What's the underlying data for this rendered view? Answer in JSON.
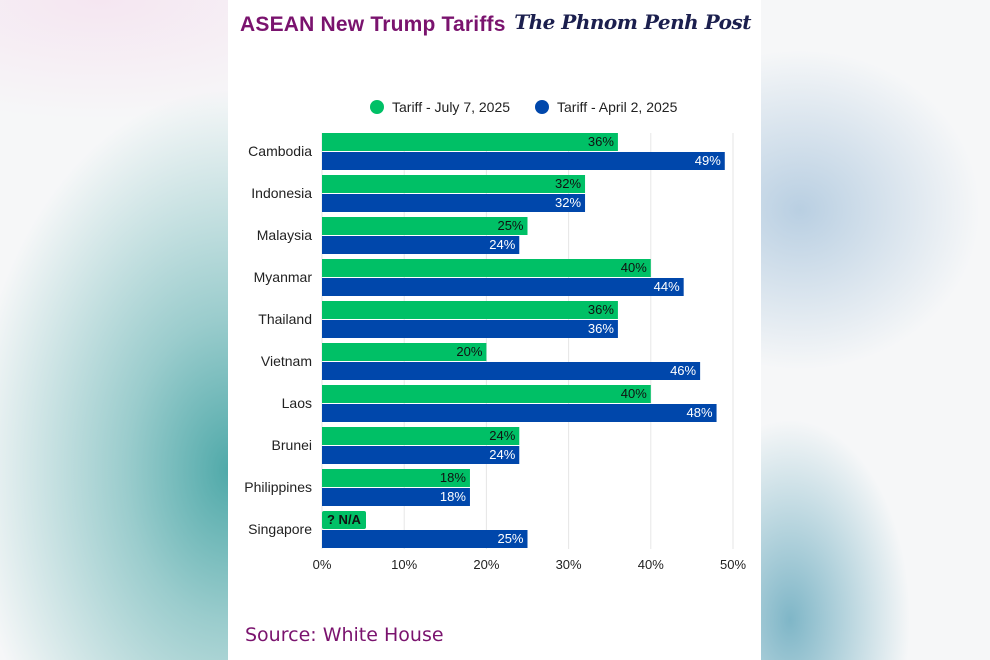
{
  "header": {
    "title": "ASEAN New Trump Tariffs",
    "logo_text": "The Phnom Penh Post"
  },
  "footer": {
    "source": "Source: White House"
  },
  "colors": {
    "title": "#7a136e",
    "series_july": "#00c066",
    "series_april": "#0047ab",
    "grid": "#e6e6e6"
  },
  "chart_data": {
    "type": "bar",
    "orientation": "horizontal",
    "title": "ASEAN New Trump Tariffs",
    "xlabel": "",
    "ylabel": "",
    "xlim": [
      0,
      50
    ],
    "xticks": [
      0,
      10,
      20,
      30,
      40,
      50
    ],
    "xtick_labels": [
      "0%",
      "10%",
      "20%",
      "30%",
      "40%",
      "50%"
    ],
    "grid": true,
    "legend_position": "top-center",
    "categories": [
      "Cambodia",
      "Indonesia",
      "Malaysia",
      "Myanmar",
      "Thailand",
      "Vietnam",
      "Laos",
      "Brunei",
      "Philippines",
      "Singapore"
    ],
    "series": [
      {
        "name": "Tariff - July 7, 2025",
        "color": "#00c066",
        "values": [
          36,
          32,
          25,
          40,
          36,
          20,
          40,
          24,
          18,
          null
        ],
        "labels": [
          "36%",
          "32%",
          "25%",
          "40%",
          "36%",
          "20%",
          "40%",
          "24%",
          "18%",
          "? N/A"
        ]
      },
      {
        "name": "Tariff - April 2, 2025",
        "color": "#0047ab",
        "values": [
          49,
          32,
          24,
          44,
          36,
          46,
          48,
          24,
          18,
          25
        ],
        "labels": [
          "49%",
          "32%",
          "24%",
          "44%",
          "36%",
          "46%",
          "48%",
          "24%",
          "18%",
          "25%"
        ]
      }
    ],
    "source": "Source: White House"
  }
}
